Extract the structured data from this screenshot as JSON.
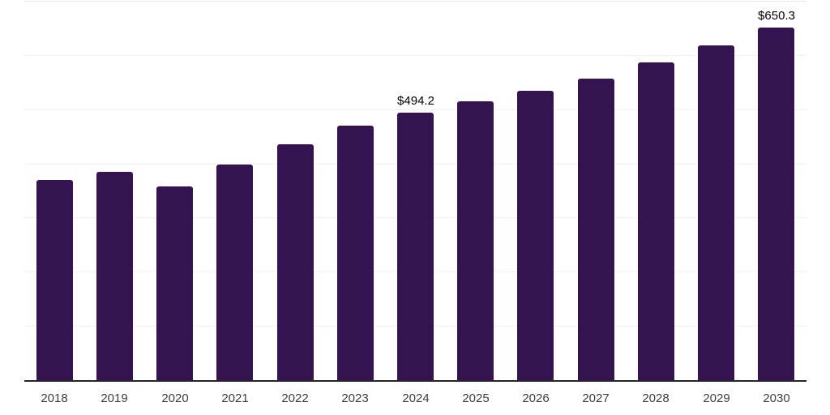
{
  "chart_data": {
    "type": "bar",
    "title": "",
    "xlabel": "",
    "ylabel": "",
    "categories": [
      "2018",
      "2019",
      "2020",
      "2021",
      "2022",
      "2023",
      "2024",
      "2025",
      "2026",
      "2027",
      "2028",
      "2029",
      "2030"
    ],
    "values": [
      369,
      384,
      357,
      398,
      436,
      470,
      494.2,
      515,
      534,
      557,
      587,
      618,
      650.3
    ],
    "value_labels": [
      {
        "category": "2024",
        "text": "$494.2"
      },
      {
        "category": "2030",
        "text": "$650.3"
      }
    ],
    "ylim": [
      0,
      700
    ],
    "grid_step": 100,
    "grid": true,
    "legend": false,
    "y_tick_labels_visible": false,
    "colors": {
      "bar": "#351250",
      "gridline": "#f2f2f2",
      "top_gridline": "#e6e6e6",
      "axis_line": "#262626",
      "tick_label": "#3d3d3d",
      "value_label": "#000000",
      "background": "#ffffff"
    }
  }
}
